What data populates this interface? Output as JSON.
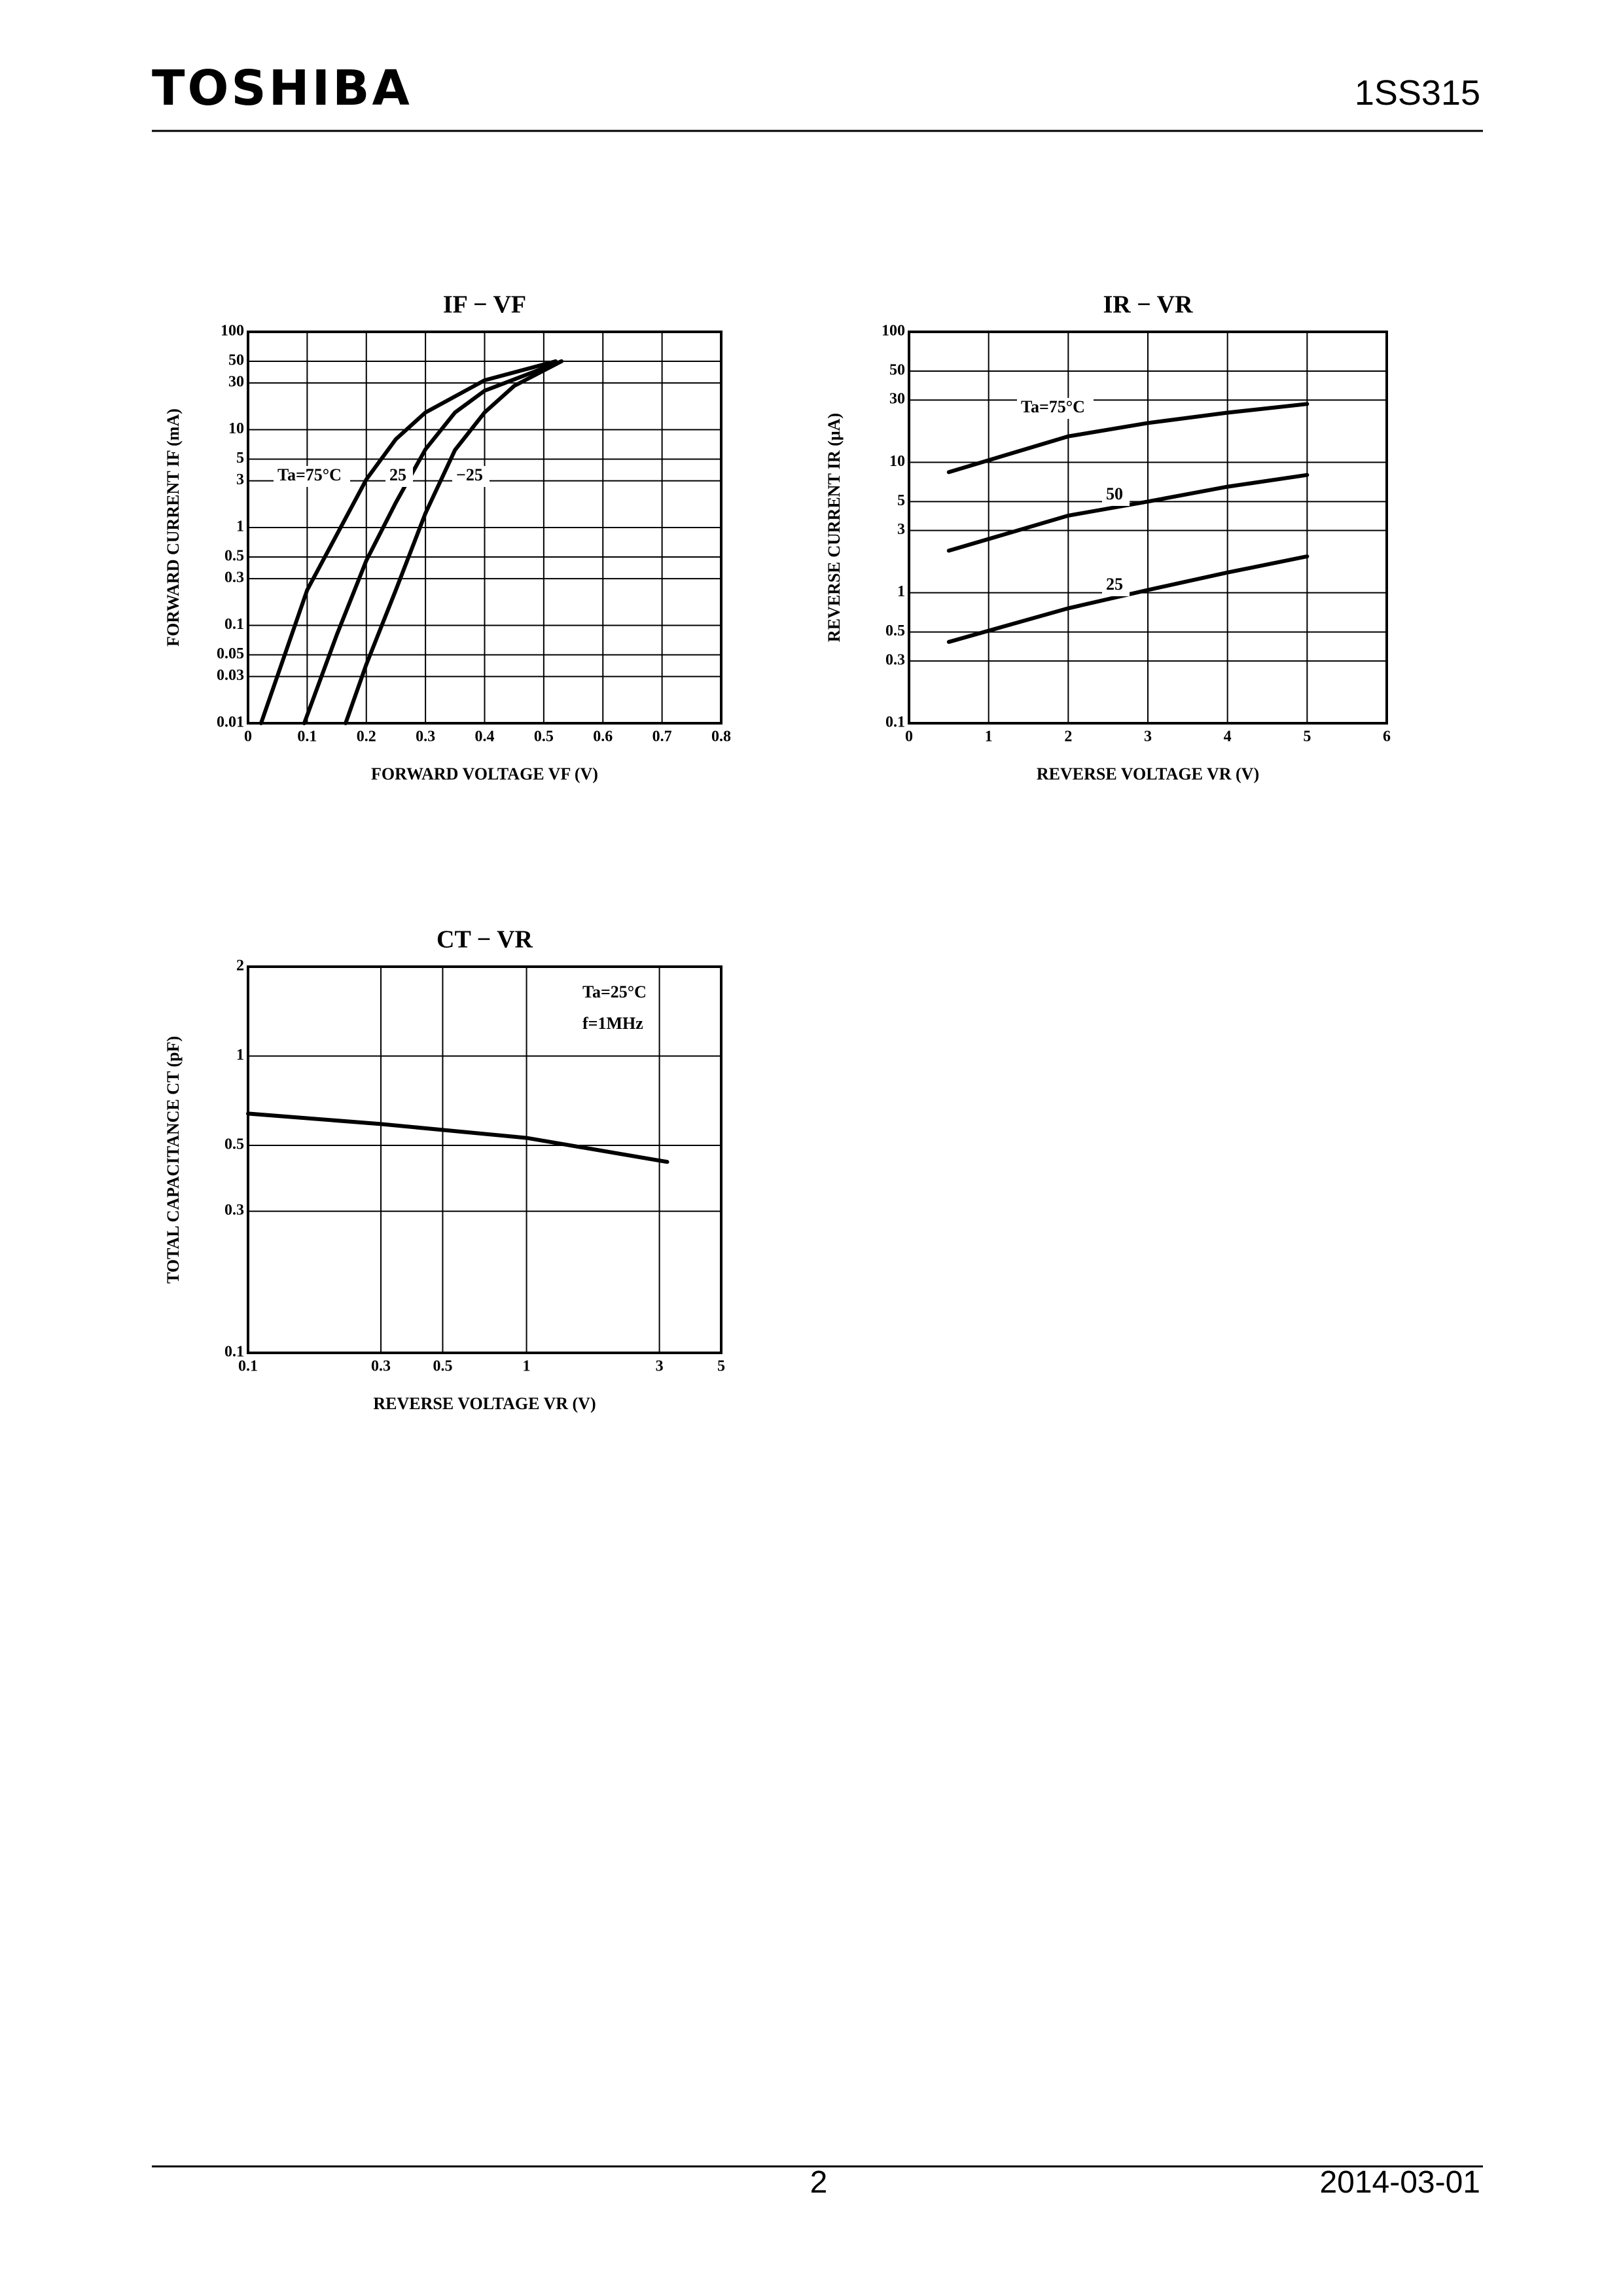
{
  "header": {
    "brand": "TOSHIBA",
    "part": "1SS315"
  },
  "footer": {
    "page": "2",
    "date": "2014-03-01"
  },
  "chart_data": [
    {
      "type": "line",
      "title": "IF − VF",
      "xlabel": "FORWARD VOLTAGE  VF   (V)",
      "ylabel": "FORWARD CURRENT  IF  (mA)",
      "xscale": "linear",
      "yscale": "log",
      "xlim": [
        0,
        0.8
      ],
      "ylim": [
        0.01,
        100
      ],
      "xticks": [
        0,
        0.1,
        0.2,
        0.3,
        0.4,
        0.5,
        0.6,
        0.7,
        0.8
      ],
      "yticks": [
        0.01,
        0.03,
        0.05,
        0.1,
        0.3,
        0.5,
        1,
        3,
        5,
        10,
        30,
        50,
        100
      ],
      "grid": true,
      "series": [
        {
          "name": "Ta=75°C",
          "color": "#000000",
          "x": [
            0.022,
            0.1,
            0.2,
            0.25,
            0.3,
            0.4,
            0.52
          ],
          "values": [
            0.01,
            0.23,
            3.1,
            8,
            15,
            32,
            50
          ]
        },
        {
          "name": "25",
          "color": "#000000",
          "x": [
            0.095,
            0.15,
            0.2,
            0.25,
            0.3,
            0.35,
            0.4,
            0.53
          ],
          "values": [
            0.01,
            0.08,
            0.46,
            1.8,
            6.3,
            15,
            25,
            50
          ]
        },
        {
          "name": "−25",
          "color": "#000000",
          "x": [
            0.165,
            0.2,
            0.25,
            0.3,
            0.35,
            0.4,
            0.45,
            0.53
          ],
          "values": [
            0.01,
            0.04,
            0.23,
            1.4,
            6.2,
            15,
            28,
            50
          ]
        }
      ]
    },
    {
      "type": "line",
      "title": "IR − VR",
      "xlabel": "REVERSE VOLTAGE  VR   (V)",
      "ylabel": "REVERSE CURRENT  IR  (μA)",
      "xscale": "linear",
      "yscale": "log",
      "xlim": [
        0,
        6
      ],
      "ylim": [
        0.1,
        100
      ],
      "xticks": [
        0,
        1,
        2,
        3,
        4,
        5,
        6
      ],
      "yticks": [
        0.1,
        0.3,
        0.5,
        1,
        3,
        5,
        10,
        30,
        50,
        100
      ],
      "grid": true,
      "series": [
        {
          "name": "Ta=75°C",
          "color": "#000000",
          "x": [
            0.5,
            2,
            3,
            4,
            5
          ],
          "values": [
            8.4,
            15.8,
            20,
            24,
            28
          ]
        },
        {
          "name": "50",
          "color": "#000000",
          "x": [
            0.5,
            2,
            3,
            4,
            5
          ],
          "values": [
            2.1,
            3.9,
            5,
            6.5,
            8
          ]
        },
        {
          "name": "25",
          "color": "#000000",
          "x": [
            0.5,
            2,
            3,
            4,
            5
          ],
          "values": [
            0.42,
            0.76,
            1.05,
            1.43,
            1.9
          ]
        }
      ]
    },
    {
      "type": "line",
      "title": "CT − VR",
      "xlabel": "REVERSE VOLTAGE  VR   (V)",
      "ylabel": "TOTAL CAPACITANCE  CT  (pF)",
      "xscale": "log",
      "yscale": "log",
      "xlim": [
        0.1,
        5
      ],
      "ylim": [
        0.1,
        2
      ],
      "xticks": [
        0.1,
        0.3,
        0.5,
        1,
        3,
        5
      ],
      "yticks": [
        0.1,
        0.3,
        0.5,
        1,
        2
      ],
      "grid": true,
      "annotations": [
        "Ta=25°C",
        "f=1MHz"
      ],
      "series": [
        {
          "name": "Ta=25°C",
          "color": "#000000",
          "x": [
            0.1,
            0.3,
            1,
            3.2
          ],
          "values": [
            0.64,
            0.59,
            0.53,
            0.44
          ]
        }
      ]
    }
  ]
}
